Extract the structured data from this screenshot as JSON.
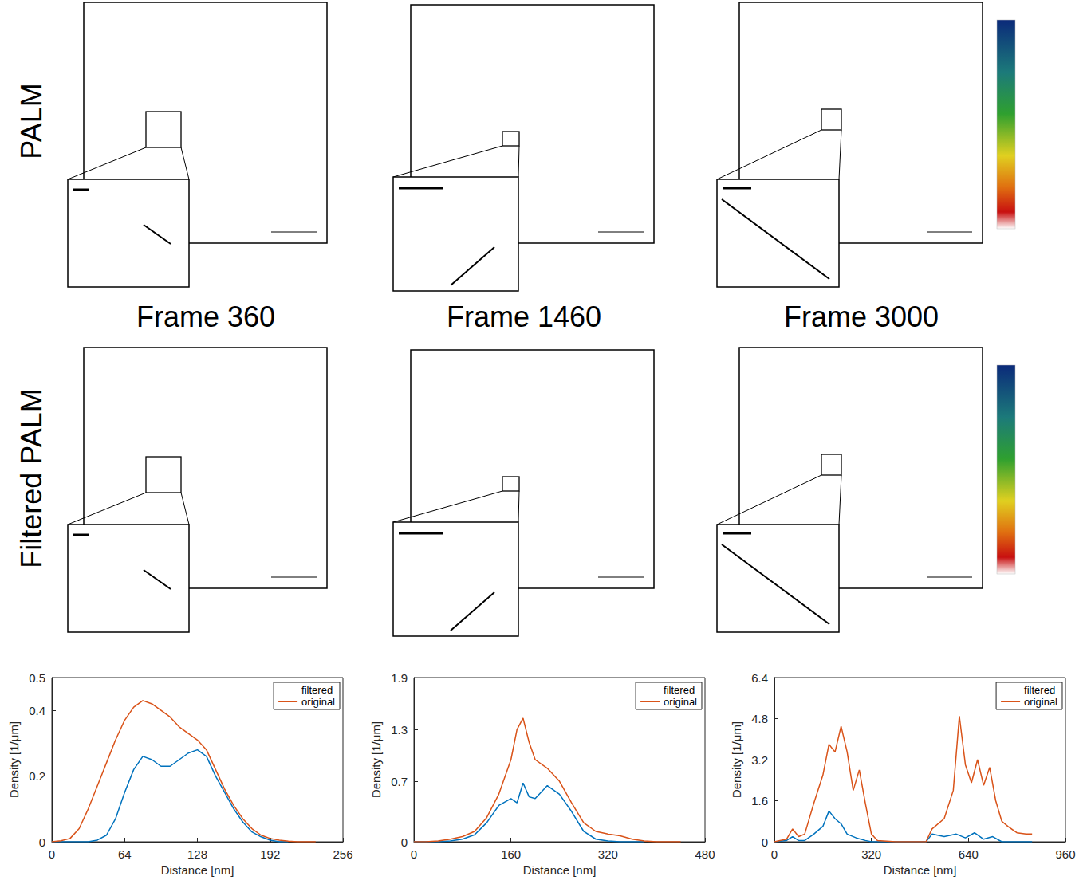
{
  "figure": {
    "rows": [
      "PALM",
      "Filtered PALM"
    ],
    "frames": [
      "Frame 360",
      "Frame 1460",
      "Frame 3000"
    ]
  },
  "chart_data": [
    {
      "type": "line",
      "xlabel": "Distance [nm]",
      "ylabel": "Density [1/μm]",
      "xlim": [
        0,
        256
      ],
      "xticks": [
        0,
        64,
        128,
        192,
        256
      ],
      "ylim": [
        0,
        0.5
      ],
      "yticks": [
        0,
        0.2,
        0.4,
        0.5
      ],
      "grid": false,
      "legend": "northeast",
      "series": [
        {
          "name": "filtered",
          "color": "#0072bd",
          "x": [
            0,
            8,
            16,
            24,
            32,
            40,
            48,
            56,
            64,
            72,
            80,
            88,
            96,
            104,
            112,
            120,
            128,
            136,
            144,
            152,
            160,
            168,
            176,
            184,
            192,
            200,
            208
          ],
          "values": [
            0,
            0,
            0,
            0,
            0,
            0.005,
            0.02,
            0.07,
            0.15,
            0.22,
            0.26,
            0.25,
            0.23,
            0.23,
            0.25,
            0.27,
            0.28,
            0.26,
            0.2,
            0.15,
            0.1,
            0.06,
            0.03,
            0.015,
            0.005,
            0,
            0
          ]
        },
        {
          "name": "original",
          "color": "#d95319",
          "x": [
            0,
            8,
            16,
            24,
            32,
            40,
            48,
            56,
            64,
            72,
            80,
            88,
            96,
            104,
            112,
            120,
            128,
            136,
            144,
            152,
            160,
            168,
            176,
            184,
            192,
            200,
            208,
            216,
            224,
            232
          ],
          "values": [
            0,
            0.003,
            0.01,
            0.04,
            0.1,
            0.17,
            0.24,
            0.31,
            0.37,
            0.41,
            0.43,
            0.42,
            0.4,
            0.38,
            0.35,
            0.33,
            0.31,
            0.28,
            0.22,
            0.16,
            0.11,
            0.07,
            0.04,
            0.02,
            0.01,
            0.005,
            0.002,
            0,
            0,
            0
          ]
        }
      ]
    },
    {
      "type": "line",
      "xlabel": "Distance [nm]",
      "ylabel": "Density [1/μm]",
      "xlim": [
        0,
        480
      ],
      "xticks": [
        0,
        160,
        320,
        480
      ],
      "ylim": [
        0,
        1.9
      ],
      "yticks": [
        0,
        0.7,
        1.3,
        1.9
      ],
      "grid": false,
      "legend": "northeast",
      "series": [
        {
          "name": "filtered",
          "color": "#0072bd",
          "x": [
            0,
            20,
            40,
            60,
            80,
            100,
            120,
            140,
            160,
            170,
            180,
            190,
            200,
            220,
            240,
            260,
            280,
            300,
            320,
            340,
            360,
            380
          ],
          "values": [
            0,
            0,
            0,
            0.01,
            0.03,
            0.08,
            0.22,
            0.42,
            0.5,
            0.45,
            0.68,
            0.52,
            0.5,
            0.65,
            0.55,
            0.35,
            0.12,
            0.03,
            0.01,
            0,
            0,
            0
          ]
        },
        {
          "name": "original",
          "color": "#d95319",
          "x": [
            0,
            20,
            40,
            60,
            80,
            100,
            120,
            140,
            160,
            170,
            180,
            190,
            200,
            220,
            240,
            260,
            280,
            300,
            320,
            340,
            360,
            380,
            400,
            420,
            440
          ],
          "values": [
            0,
            0,
            0.01,
            0.03,
            0.06,
            0.12,
            0.28,
            0.55,
            0.95,
            1.3,
            1.43,
            1.15,
            0.95,
            0.85,
            0.7,
            0.45,
            0.22,
            0.12,
            0.09,
            0.07,
            0.03,
            0.01,
            0,
            0,
            0
          ]
        }
      ]
    },
    {
      "type": "line",
      "xlabel": "Distance [nm]",
      "ylabel": "Density [1/μm]",
      "xlim": [
        0,
        960
      ],
      "xticks": [
        0,
        320,
        640,
        960
      ],
      "ylim": [
        0,
        6.4
      ],
      "yticks": [
        0,
        1.6,
        3.2,
        4.8,
        6.4
      ],
      "grid": false,
      "legend": "northeast",
      "series": [
        {
          "name": "filtered",
          "color": "#0072bd",
          "x": [
            0,
            40,
            60,
            80,
            100,
            130,
            160,
            180,
            200,
            220,
            240,
            270,
            300,
            320,
            400,
            500,
            520,
            560,
            600,
            630,
            660,
            690,
            720,
            750,
            800,
            850
          ],
          "values": [
            0,
            0.05,
            0.2,
            0.05,
            0.05,
            0.3,
            0.6,
            1.2,
            0.9,
            0.7,
            0.3,
            0.15,
            0.05,
            0,
            0,
            0,
            0.3,
            0.2,
            0.3,
            0.15,
            0.35,
            0.1,
            0.2,
            0,
            0,
            0
          ]
        },
        {
          "name": "original",
          "color": "#d95319",
          "x": [
            0,
            40,
            60,
            80,
            100,
            130,
            160,
            180,
            200,
            220,
            240,
            260,
            280,
            300,
            320,
            340,
            400,
            500,
            520,
            560,
            590,
            610,
            630,
            650,
            670,
            690,
            710,
            730,
            750,
            770,
            800,
            830,
            850
          ],
          "values": [
            0,
            0.1,
            0.5,
            0.2,
            0.3,
            1.5,
            2.6,
            3.8,
            3.5,
            4.5,
            3.5,
            2.0,
            2.8,
            1.5,
            0.3,
            0.05,
            0,
            0,
            0.5,
            0.9,
            2.0,
            4.9,
            3.0,
            2.3,
            3.2,
            2.2,
            2.9,
            1.6,
            0.8,
            0.6,
            0.35,
            0.3,
            0.3
          ]
        }
      ]
    }
  ]
}
